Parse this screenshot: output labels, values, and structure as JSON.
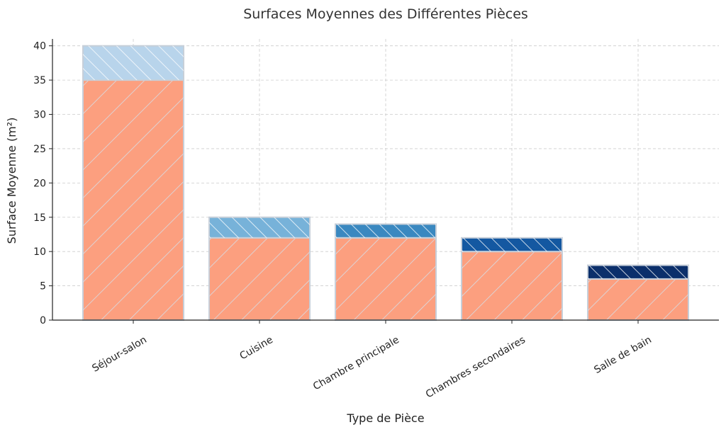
{
  "chart_data": {
    "type": "bar",
    "stacked": true,
    "title": "Surfaces Moyennes des Différentes Pièces",
    "xlabel": "Type de Pièce",
    "ylabel": "Surface Moyenne (m²)",
    "categories": [
      "Séjour-salon",
      "Cuisine",
      "Chambre principale",
      "Chambres secondaires",
      "Salle de bain"
    ],
    "ylim": [
      0,
      41
    ],
    "yticks": [
      0,
      5,
      10,
      15,
      20,
      25,
      30,
      35,
      40
    ],
    "grid": true,
    "hatch": true,
    "series": [
      {
        "values": [
          35,
          12,
          12,
          10,
          6
        ],
        "color": "#fc9f7f"
      },
      {
        "values": [
          5,
          3,
          2,
          2,
          2
        ],
        "colors": [
          "#b8d4eb",
          "#77b2d9",
          "#3a88c0",
          "#1458a1",
          "#0b2f6b"
        ]
      }
    ]
  }
}
